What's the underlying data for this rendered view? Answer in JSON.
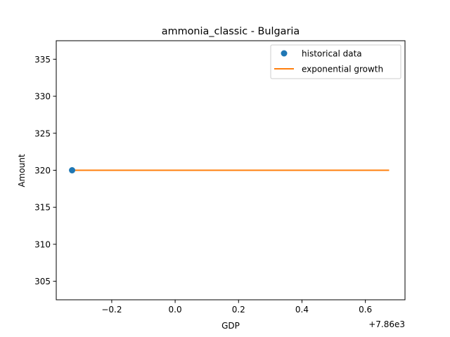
{
  "chart_data": {
    "type": "scatter",
    "title": "ammonia_classic - Bulgaria",
    "xlabel": "GDP",
    "ylabel": "Amount",
    "x_offset_label": "+7.86e3",
    "xlim": [
      -0.375,
      0.725
    ],
    "ylim": [
      302.5,
      337.5
    ],
    "x_ticks": [
      -0.2,
      0.0,
      0.2,
      0.4,
      0.6
    ],
    "x_tick_labels": [
      "−0.2",
      "0.0",
      "0.2",
      "0.4",
      "0.6"
    ],
    "y_ticks": [
      305,
      310,
      315,
      320,
      325,
      330,
      335
    ],
    "y_tick_labels": [
      "305",
      "310",
      "315",
      "320",
      "325",
      "330",
      "335"
    ],
    "grid": false,
    "legend_position": "top-right",
    "series": [
      {
        "name": "historical data",
        "kind": "scatter",
        "color": "#1f77b4",
        "points": [
          {
            "x": -0.325,
            "y": 320
          }
        ]
      },
      {
        "name": "exponential growth",
        "kind": "line",
        "color": "#ff7f0e",
        "points": [
          {
            "x": -0.325,
            "y": 320
          },
          {
            "x": 0.675,
            "y": 320
          }
        ]
      }
    ]
  }
}
